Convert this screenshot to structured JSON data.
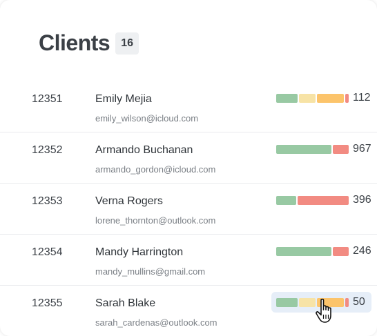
{
  "header": {
    "title": "Clients",
    "count": "16"
  },
  "clients": [
    {
      "id": "12351",
      "name": "Emily Mejia",
      "email": "emily_wilson@icloud.com",
      "value": "112",
      "segments": [
        {
          "color": "green",
          "share": 0.31
        },
        {
          "color": "yellow",
          "share": 0.25
        },
        {
          "color": "orange",
          "share": 0.39
        },
        {
          "color": "red",
          "share": 0.05
        }
      ]
    },
    {
      "id": "12352",
      "name": "Armando Buchanan",
      "email": "armando_gordon@icloud.com",
      "value": "967",
      "segments": [
        {
          "color": "green",
          "share": 0.78
        },
        {
          "color": "red",
          "share": 0.22
        }
      ]
    },
    {
      "id": "12353",
      "name": "Verna Rogers",
      "email": "lorene_thornton@outlook.com",
      "value": "396",
      "segments": [
        {
          "color": "green",
          "share": 0.28
        },
        {
          "color": "red",
          "share": 0.72
        }
      ]
    },
    {
      "id": "12354",
      "name": "Mandy Harrington",
      "email": "mandy_mullins@gmail.com",
      "value": "246",
      "segments": [
        {
          "color": "green",
          "share": 0.78
        },
        {
          "color": "red",
          "share": 0.22
        }
      ]
    },
    {
      "id": "12355",
      "name": "Sarah Blake",
      "email": "sarah_cardenas@outlook.com",
      "value": "50",
      "segments": [
        {
          "color": "green",
          "share": 0.31
        },
        {
          "color": "yellow",
          "share": 0.25
        },
        {
          "color": "orange",
          "share": 0.39
        },
        {
          "color": "red",
          "share": 0.05
        }
      ]
    }
  ],
  "colors": {
    "green": "#98c9a3",
    "yellow": "#f7e3a6",
    "orange": "#fcc46b",
    "red": "#f28b82",
    "hover": "#e6eef8"
  },
  "hovered_row_index": 4,
  "cursor_icon": "hand-pointer-icon"
}
